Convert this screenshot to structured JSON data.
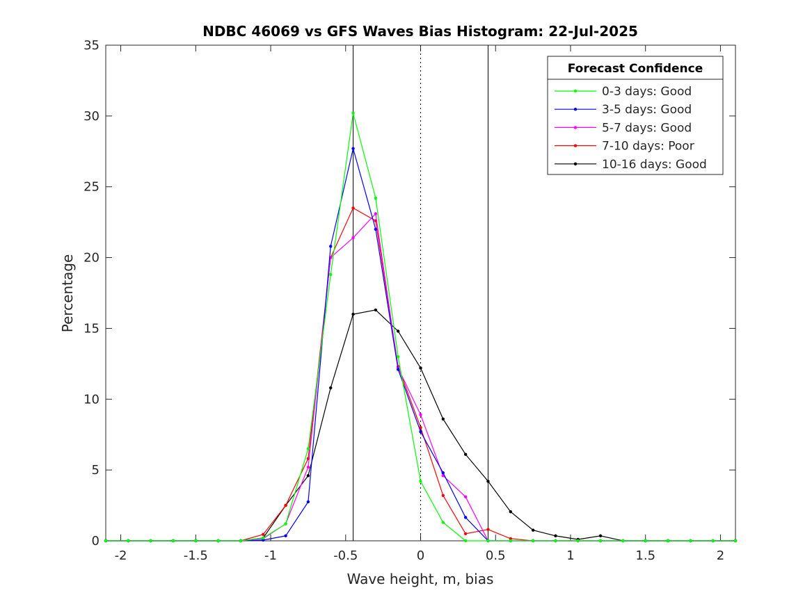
{
  "chart_data": {
    "type": "line",
    "title": "NDBC 46069 vs GFS Waves Bias Histogram: 22-Jul-2025",
    "xlabel": "Wave height, m, bias",
    "ylabel": "Percentage",
    "xlim": [
      -2.1,
      2.1
    ],
    "ylim": [
      0,
      35
    ],
    "xticks": [
      -2,
      -1.5,
      -1,
      -0.5,
      0,
      0.5,
      1,
      1.5,
      2
    ],
    "xtick_labels": [
      "-2",
      "-1.5",
      "-1",
      "-0.5",
      "0",
      "0.5",
      "1",
      "1.5",
      "2"
    ],
    "yticks": [
      0,
      5,
      10,
      15,
      20,
      25,
      30,
      35
    ],
    "ytick_labels": [
      "0",
      "5",
      "10",
      "15",
      "20",
      "25",
      "30",
      "35"
    ],
    "grid": false,
    "vertical_lines": [
      {
        "x": -0.45,
        "style": "solid"
      },
      {
        "x": 0,
        "style": "dotted"
      },
      {
        "x": 0.45,
        "style": "solid"
      }
    ],
    "legend": {
      "title": "Forecast Confidence",
      "position": "top-right"
    },
    "x": [
      -2.1,
      -1.95,
      -1.8,
      -1.65,
      -1.5,
      -1.35,
      -1.2,
      -1.05,
      -0.9,
      -0.75,
      -0.6,
      -0.45,
      -0.3,
      -0.15,
      0,
      0.15,
      0.3,
      0.45,
      0.6,
      0.75,
      0.9,
      1.05,
      1.2,
      1.35,
      1.5,
      1.65,
      1.8,
      1.95,
      2.1
    ],
    "series": [
      {
        "name": "0-3 days: Good",
        "color": "#00ff00",
        "values": [
          0,
          0,
          0,
          0,
          0,
          0,
          0,
          0.2,
          1.2,
          6.5,
          18.8,
          30.2,
          24.2,
          13.0,
          4.2,
          1.3,
          0,
          0,
          0,
          0,
          0,
          0,
          0,
          0,
          0,
          0,
          0,
          0,
          0
        ]
      },
      {
        "name": "3-5 days: Good",
        "color": "#0000ff",
        "values": [
          0,
          0,
          0,
          0,
          0,
          0,
          0,
          0.05,
          0.35,
          2.75,
          20.8,
          27.7,
          22.0,
          12.1,
          7.7,
          4.8,
          1.65,
          0,
          0,
          0,
          0,
          0,
          0,
          0,
          0,
          0,
          0,
          0,
          0
        ]
      },
      {
        "name": "5-7 days: Good",
        "color": "#ff00ff",
        "values": [
          0,
          0,
          0,
          0,
          0,
          0,
          0,
          0.15,
          1.2,
          5.2,
          20.0,
          21.4,
          23.1,
          12.2,
          8.9,
          4.6,
          3.1,
          0,
          0,
          0,
          0,
          0,
          0,
          0,
          0,
          0,
          0,
          0,
          0
        ]
      },
      {
        "name": "7-10 days: Poor",
        "color": "#ff0000",
        "values": [
          0,
          0,
          0,
          0,
          0,
          0,
          0,
          0.45,
          2.5,
          5.8,
          20.0,
          23.5,
          22.6,
          12.3,
          8.0,
          3.2,
          0.5,
          0.8,
          0.15,
          0,
          0,
          0,
          0,
          0,
          0,
          0,
          0,
          0,
          0
        ]
      },
      {
        "name": "10-16 days: Good",
        "color": "#000000",
        "values": [
          0,
          0,
          0,
          0,
          0,
          0,
          0,
          0.2,
          2.5,
          4.6,
          10.8,
          16.0,
          16.3,
          14.8,
          12.2,
          8.6,
          6.1,
          4.2,
          2.05,
          0.75,
          0.35,
          0.1,
          0.35,
          0,
          0,
          0,
          0,
          0,
          0
        ]
      }
    ]
  }
}
